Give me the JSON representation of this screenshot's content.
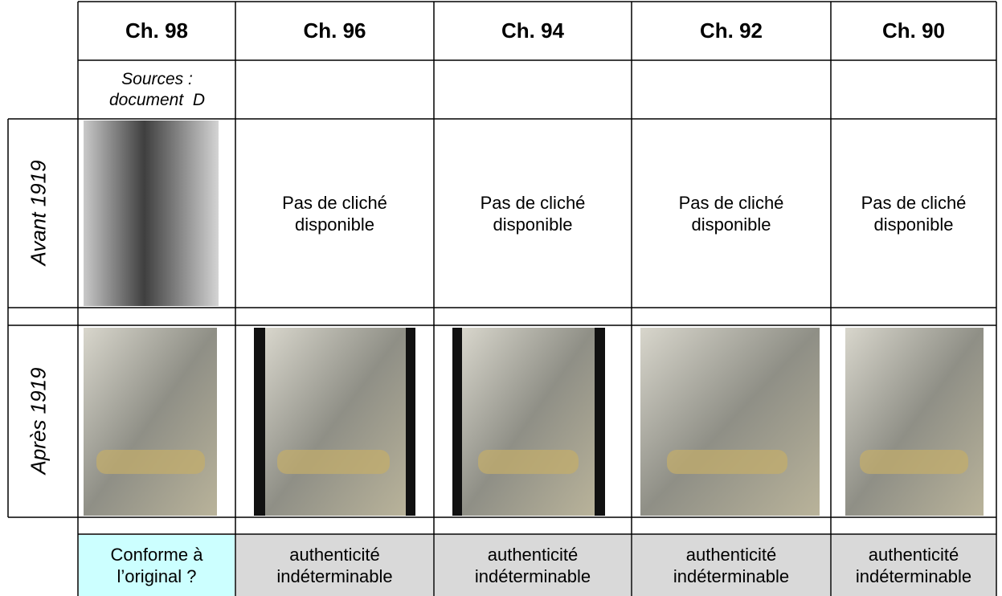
{
  "header": {
    "columns": [
      "Ch. 98",
      "Ch. 96",
      "Ch. 94",
      "Ch. 92",
      "Ch. 90"
    ]
  },
  "sources": {
    "lines": [
      "Sources :",
      "document  D"
    ]
  },
  "avant": {
    "label": "Avant 1919",
    "notes": [
      [
        "Pas de cliché",
        "disponible"
      ],
      [
        "Pas de cliché",
        "disponible"
      ],
      [
        "Pas de cliché",
        "disponible"
      ],
      [
        "Pas de cliché",
        "disponible"
      ]
    ]
  },
  "apres": {
    "label": "Après 1919"
  },
  "verdicts": [
    [
      "Conforme à",
      "l’original ?"
    ],
    [
      "authenticité",
      "indéterminable"
    ],
    [
      "authenticité",
      "indéterminable"
    ],
    [
      "authenticité",
      "indéterminable"
    ],
    [
      "authenticité",
      "indéterminable"
    ]
  ]
}
